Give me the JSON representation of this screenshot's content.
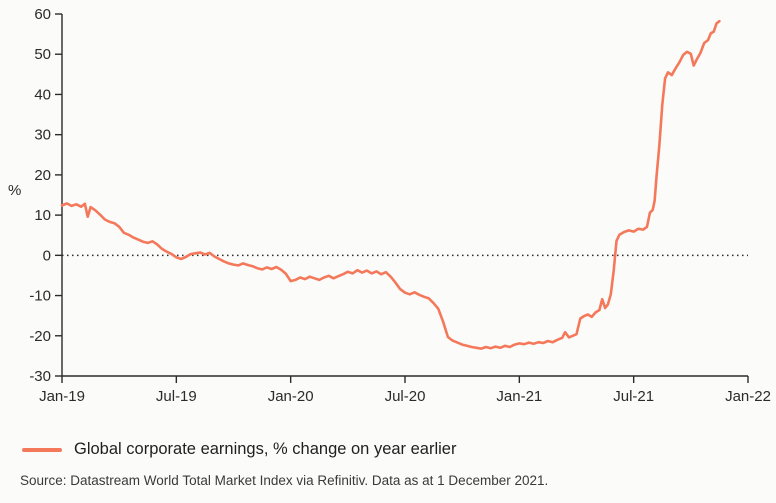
{
  "page": {
    "background": "#fbfbfa"
  },
  "chart_data": {
    "type": "line",
    "title": "",
    "xlabel": "",
    "ylabel": "%",
    "ylim": [
      -30,
      60
    ],
    "yticks": [
      60,
      50,
      40,
      30,
      20,
      10,
      0,
      -10,
      -20,
      -30
    ],
    "x_unit": "months since Jan-2019",
    "xlim": [
      0,
      36
    ],
    "xticks": [
      {
        "m": 0,
        "label": "Jan-19"
      },
      {
        "m": 6,
        "label": "Jul-19"
      },
      {
        "m": 12,
        "label": "Jan-20"
      },
      {
        "m": 18,
        "label": "Jul-20"
      },
      {
        "m": 24,
        "label": "Jan-21"
      },
      {
        "m": 30,
        "label": "Jul-21"
      },
      {
        "m": 36,
        "label": "Jan-22"
      }
    ],
    "grid": false,
    "zero_line_dotted": true,
    "legend_position": "below",
    "line_color": "#f4795b",
    "series": [
      {
        "name": "Global corporate earnings, % change on year earlier",
        "points": [
          [
            0,
            12.4
          ],
          [
            0.25,
            12.9
          ],
          [
            0.5,
            12.3
          ],
          [
            0.75,
            12.7
          ],
          [
            1,
            12.1
          ],
          [
            1.2,
            12.8
          ],
          [
            1.35,
            9.6
          ],
          [
            1.5,
            12.0
          ],
          [
            1.75,
            11.2
          ],
          [
            2,
            10.1
          ],
          [
            2.25,
            8.9
          ],
          [
            2.5,
            8.3
          ],
          [
            2.75,
            8.0
          ],
          [
            3,
            7.1
          ],
          [
            3.25,
            5.6
          ],
          [
            3.5,
            5.1
          ],
          [
            3.75,
            4.4
          ],
          [
            4,
            3.9
          ],
          [
            4.25,
            3.4
          ],
          [
            4.5,
            3.1
          ],
          [
            4.75,
            3.5
          ],
          [
            5,
            2.7
          ],
          [
            5.25,
            1.6
          ],
          [
            5.5,
            0.9
          ],
          [
            5.75,
            0.3
          ],
          [
            6,
            -0.5
          ],
          [
            6.25,
            -0.9
          ],
          [
            6.5,
            -0.4
          ],
          [
            6.75,
            0.3
          ],
          [
            7,
            0.5
          ],
          [
            7.25,
            0.7
          ],
          [
            7.5,
            0.2
          ],
          [
            7.75,
            0.6
          ],
          [
            8,
            -0.3
          ],
          [
            8.25,
            -0.9
          ],
          [
            8.5,
            -1.5
          ],
          [
            8.75,
            -2.0
          ],
          [
            9,
            -2.3
          ],
          [
            9.25,
            -2.5
          ],
          [
            9.5,
            -2.0
          ],
          [
            9.75,
            -2.4
          ],
          [
            10,
            -2.7
          ],
          [
            10.25,
            -3.2
          ],
          [
            10.5,
            -3.5
          ],
          [
            10.75,
            -3.0
          ],
          [
            11,
            -3.4
          ],
          [
            11.25,
            -2.9
          ],
          [
            11.5,
            -3.6
          ],
          [
            11.75,
            -4.6
          ],
          [
            12,
            -6.4
          ],
          [
            12.25,
            -6.1
          ],
          [
            12.5,
            -5.5
          ],
          [
            12.75,
            -5.9
          ],
          [
            13,
            -5.3
          ],
          [
            13.25,
            -5.7
          ],
          [
            13.5,
            -6.1
          ],
          [
            13.75,
            -5.5
          ],
          [
            14,
            -5.1
          ],
          [
            14.25,
            -5.7
          ],
          [
            14.5,
            -5.2
          ],
          [
            14.75,
            -4.7
          ],
          [
            15,
            -4.1
          ],
          [
            15.25,
            -4.5
          ],
          [
            15.5,
            -3.7
          ],
          [
            15.75,
            -4.3
          ],
          [
            16,
            -3.8
          ],
          [
            16.25,
            -4.5
          ],
          [
            16.5,
            -4.0
          ],
          [
            16.75,
            -4.7
          ],
          [
            17,
            -4.2
          ],
          [
            17.25,
            -5.3
          ],
          [
            17.5,
            -6.8
          ],
          [
            17.75,
            -8.4
          ],
          [
            18,
            -9.3
          ],
          [
            18.25,
            -9.7
          ],
          [
            18.5,
            -9.2
          ],
          [
            18.75,
            -9.8
          ],
          [
            19,
            -10.3
          ],
          [
            19.25,
            -10.7
          ],
          [
            19.5,
            -11.9
          ],
          [
            19.75,
            -13.3
          ],
          [
            20,
            -16.5
          ],
          [
            20.25,
            -20.3
          ],
          [
            20.5,
            -21.2
          ],
          [
            20.75,
            -21.7
          ],
          [
            21,
            -22.2
          ],
          [
            21.25,
            -22.5
          ],
          [
            21.5,
            -22.8
          ],
          [
            21.75,
            -23.0
          ],
          [
            22,
            -23.2
          ],
          [
            22.25,
            -22.8
          ],
          [
            22.5,
            -23.1
          ],
          [
            22.75,
            -22.7
          ],
          [
            23,
            -23.0
          ],
          [
            23.25,
            -22.5
          ],
          [
            23.5,
            -22.8
          ],
          [
            23.75,
            -22.2
          ],
          [
            24,
            -21.9
          ],
          [
            24.25,
            -22.1
          ],
          [
            24.5,
            -21.7
          ],
          [
            24.75,
            -22.0
          ],
          [
            25,
            -21.6
          ],
          [
            25.25,
            -21.8
          ],
          [
            25.5,
            -21.3
          ],
          [
            25.75,
            -21.6
          ],
          [
            26,
            -21.0
          ],
          [
            26.25,
            -20.5
          ],
          [
            26.4,
            -19.1
          ],
          [
            26.6,
            -20.4
          ],
          [
            26.8,
            -20.0
          ],
          [
            27,
            -19.6
          ],
          [
            27.2,
            -15.7
          ],
          [
            27.4,
            -15.1
          ],
          [
            27.6,
            -14.7
          ],
          [
            27.8,
            -15.3
          ],
          [
            28,
            -14.2
          ],
          [
            28.2,
            -13.6
          ],
          [
            28.35,
            -10.9
          ],
          [
            28.5,
            -13.1
          ],
          [
            28.65,
            -12.2
          ],
          [
            28.8,
            -9.7
          ],
          [
            28.95,
            -3.8
          ],
          [
            29.1,
            3.6
          ],
          [
            29.25,
            5.1
          ],
          [
            29.5,
            5.8
          ],
          [
            29.75,
            6.2
          ],
          [
            30,
            5.9
          ],
          [
            30.25,
            6.6
          ],
          [
            30.5,
            6.4
          ],
          [
            30.7,
            7.1
          ],
          [
            30.85,
            10.6
          ],
          [
            31,
            11.3
          ],
          [
            31.1,
            13.5
          ],
          [
            31.2,
            19.5
          ],
          [
            31.35,
            27.5
          ],
          [
            31.5,
            37.5
          ],
          [
            31.65,
            44.0
          ],
          [
            31.8,
            45.5
          ],
          [
            32,
            44.8
          ],
          [
            32.2,
            46.5
          ],
          [
            32.4,
            48.0
          ],
          [
            32.6,
            49.8
          ],
          [
            32.8,
            50.6
          ],
          [
            33,
            50.1
          ],
          [
            33.15,
            47.2
          ],
          [
            33.3,
            48.6
          ],
          [
            33.5,
            50.3
          ],
          [
            33.7,
            52.8
          ],
          [
            33.9,
            53.5
          ],
          [
            34.05,
            55.2
          ],
          [
            34.2,
            55.6
          ],
          [
            34.35,
            57.7
          ],
          [
            34.5,
            58.2
          ]
        ]
      }
    ]
  },
  "legend": {
    "label": "Global corporate earnings, % change on year earlier"
  },
  "source": {
    "text": "Source: Datastream World Total Market Index via Refinitiv. Data as at 1 December 2021."
  }
}
